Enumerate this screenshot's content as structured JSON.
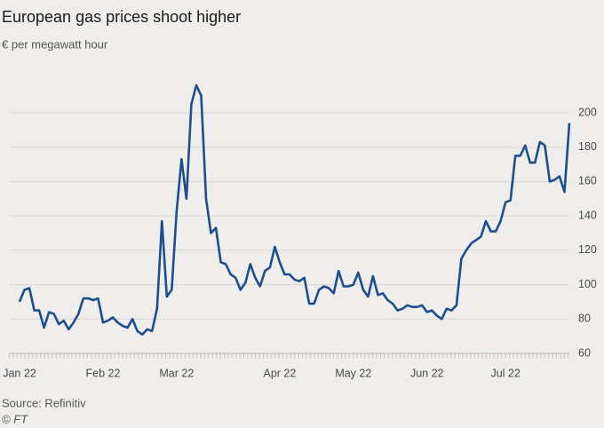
{
  "chart_data": {
    "type": "line",
    "title": "European gas prices shoot higher",
    "subtitle": "€ per megawatt hour",
    "source": "Source: Refinitiv",
    "credit": "© FT",
    "color": "#1d4f8e",
    "grid": true,
    "ylim": [
      60,
      215
    ],
    "yticks": [
      60,
      80,
      100,
      120,
      140,
      160,
      180,
      200
    ],
    "categories": [
      "Jan 22",
      null,
      null,
      null,
      null,
      null,
      null,
      null,
      null,
      null,
      null,
      null,
      null,
      null,
      null,
      null,
      null,
      "Feb 22",
      null,
      null,
      null,
      null,
      null,
      null,
      null,
      null,
      null,
      null,
      null,
      null,
      null,
      null,
      "Mar 22",
      null,
      null,
      null,
      null,
      null,
      null,
      null,
      null,
      null,
      null,
      null,
      null,
      null,
      null,
      null,
      null,
      null,
      null,
      null,
      null,
      "Apr 22",
      null,
      null,
      null,
      null,
      null,
      null,
      null,
      null,
      null,
      null,
      null,
      null,
      null,
      null,
      "May 22",
      null,
      null,
      null,
      null,
      null,
      null,
      null,
      null,
      null,
      null,
      null,
      null,
      null,
      null,
      "Jun 22",
      null,
      null,
      null,
      null,
      null,
      null,
      null,
      null,
      null,
      null,
      null,
      null,
      null,
      null,
      null,
      "Jul 22",
      null,
      null,
      null,
      null,
      null,
      null,
      null,
      null,
      null,
      null,
      null,
      null,
      null
    ],
    "values": [
      90,
      97,
      98,
      85,
      85,
      75,
      84,
      83,
      77,
      79,
      74,
      78,
      83,
      92,
      92,
      91,
      92,
      78,
      79,
      81,
      78,
      76,
      75,
      80,
      73,
      71,
      74,
      73,
      86,
      137,
      93,
      97,
      143,
      173,
      150,
      205,
      216,
      210,
      150,
      130,
      133,
      113,
      112,
      106,
      104,
      97,
      101,
      112,
      104,
      99,
      108,
      110,
      122,
      113,
      106,
      106,
      103,
      102,
      104,
      89,
      89,
      97,
      99,
      98,
      95,
      108,
      99,
      99,
      100,
      107,
      97,
      93,
      105,
      94,
      95,
      91,
      89,
      85,
      86,
      88,
      87,
      87,
      88,
      84,
      85,
      82,
      80,
      86,
      85,
      88,
      115,
      120,
      124,
      126,
      128,
      137,
      131,
      131,
      137,
      148,
      149,
      175,
      175,
      181,
      171,
      171,
      183,
      181,
      160,
      161,
      163,
      154,
      194
    ]
  }
}
